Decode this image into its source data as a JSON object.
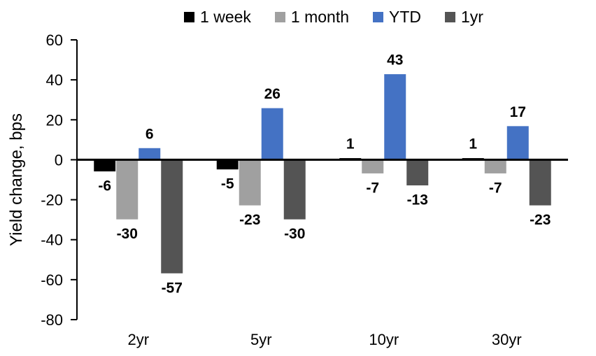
{
  "chart_data": {
    "type": "bar",
    "title": "",
    "ylabel": "Yield change, bps",
    "xlabel": "",
    "categories": [
      "2yr",
      "5yr",
      "10yr",
      "30yr"
    ],
    "series": [
      {
        "name": "1 week",
        "color": "#000000",
        "values": [
          -6,
          -5,
          1,
          1
        ]
      },
      {
        "name": "1 month",
        "color": "#A0A0A0",
        "values": [
          -30,
          -23,
          -7,
          -7
        ]
      },
      {
        "name": "YTD",
        "color": "#4472C4",
        "values": [
          6,
          26,
          43,
          17
        ]
      },
      {
        "name": "1yr",
        "color": "#545454",
        "values": [
          -57,
          -30,
          -13,
          -23
        ]
      }
    ],
    "ylim": [
      -80,
      60
    ],
    "yticks": [
      60,
      40,
      20,
      0,
      -20,
      -40,
      -60,
      -80
    ],
    "grid": false,
    "legend_position": "top",
    "data_labels": true,
    "axis_color": "#000000",
    "background": "#FFFFFF"
  }
}
